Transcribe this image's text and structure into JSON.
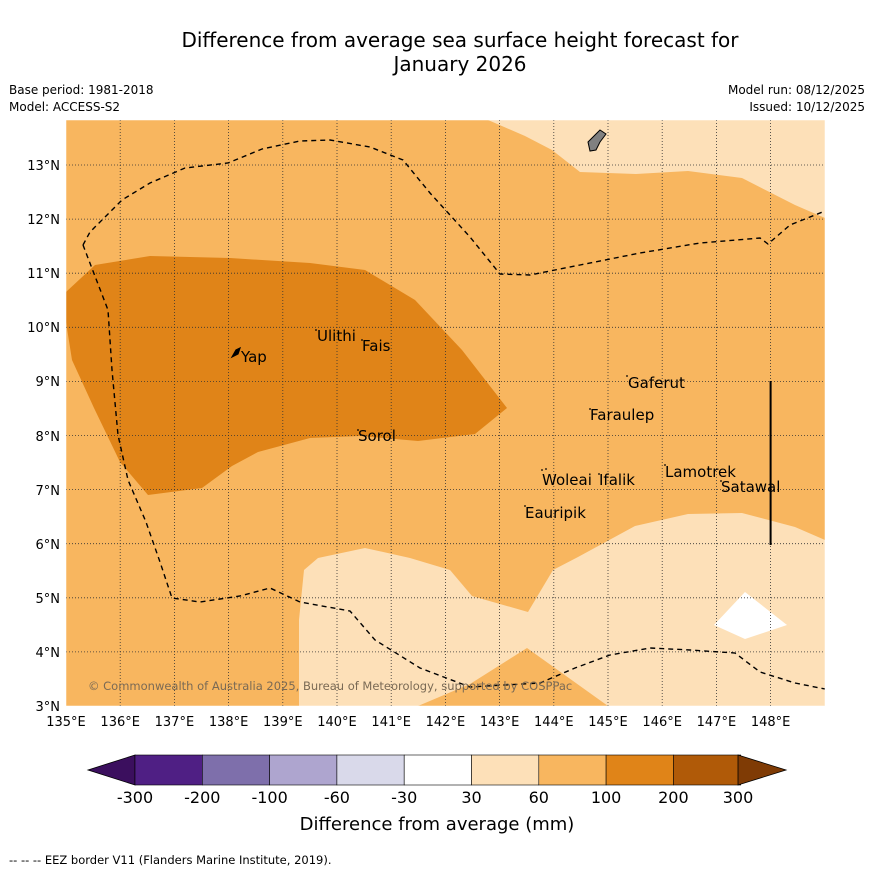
{
  "title": {
    "line1": "Difference from average sea surface height forecast for",
    "line2": "January 2026"
  },
  "info": {
    "base_period": "Base period: 1981-2018",
    "model": "Model: ACCESS-S2",
    "model_run": "Model run: 08/12/2025",
    "issued": "Issued: 10/12/2025"
  },
  "map": {
    "lon_labels": [
      "135°E",
      "136°E",
      "137°E",
      "138°E",
      "139°E",
      "140°E",
      "141°E",
      "142°E",
      "143°E",
      "144°E",
      "145°E",
      "146°E",
      "147°E",
      "148°E"
    ],
    "lat_labels": [
      "13°N",
      "12°N",
      "11°N",
      "10°N",
      "9°N",
      "8°N",
      "7°N",
      "6°N",
      "5°N",
      "4°N",
      "3°N"
    ],
    "places": [
      "Yap",
      "Ulithi",
      "Fais",
      "Gaferut",
      "Faraulep",
      "Sorol",
      "Woleai",
      "Ifalik",
      "Lamotrek",
      "Satawal",
      "Eauripik"
    ],
    "copyright": "© Commonwealth of Australia 2025, Bureau of Meteorology, supported by COSPPac"
  },
  "legend": {
    "ticks": [
      "-300",
      "-200",
      "-100",
      "-60",
      "-30",
      "30",
      "60",
      "100",
      "200",
      "300"
    ],
    "colors": [
      "#3b0f5e",
      "#4f1f84",
      "#7e6fab",
      "#aea5cf",
      "#d9d9ea",
      "#ffffff",
      "#fde0b8",
      "#f8b65f",
      "#e08418",
      "#b05a08",
      "#7f3b05"
    ],
    "label": "Difference from average (mm)"
  },
  "footer": "--  --  -- EEZ border V11 (Flanders Marine Institute, 2019)."
}
